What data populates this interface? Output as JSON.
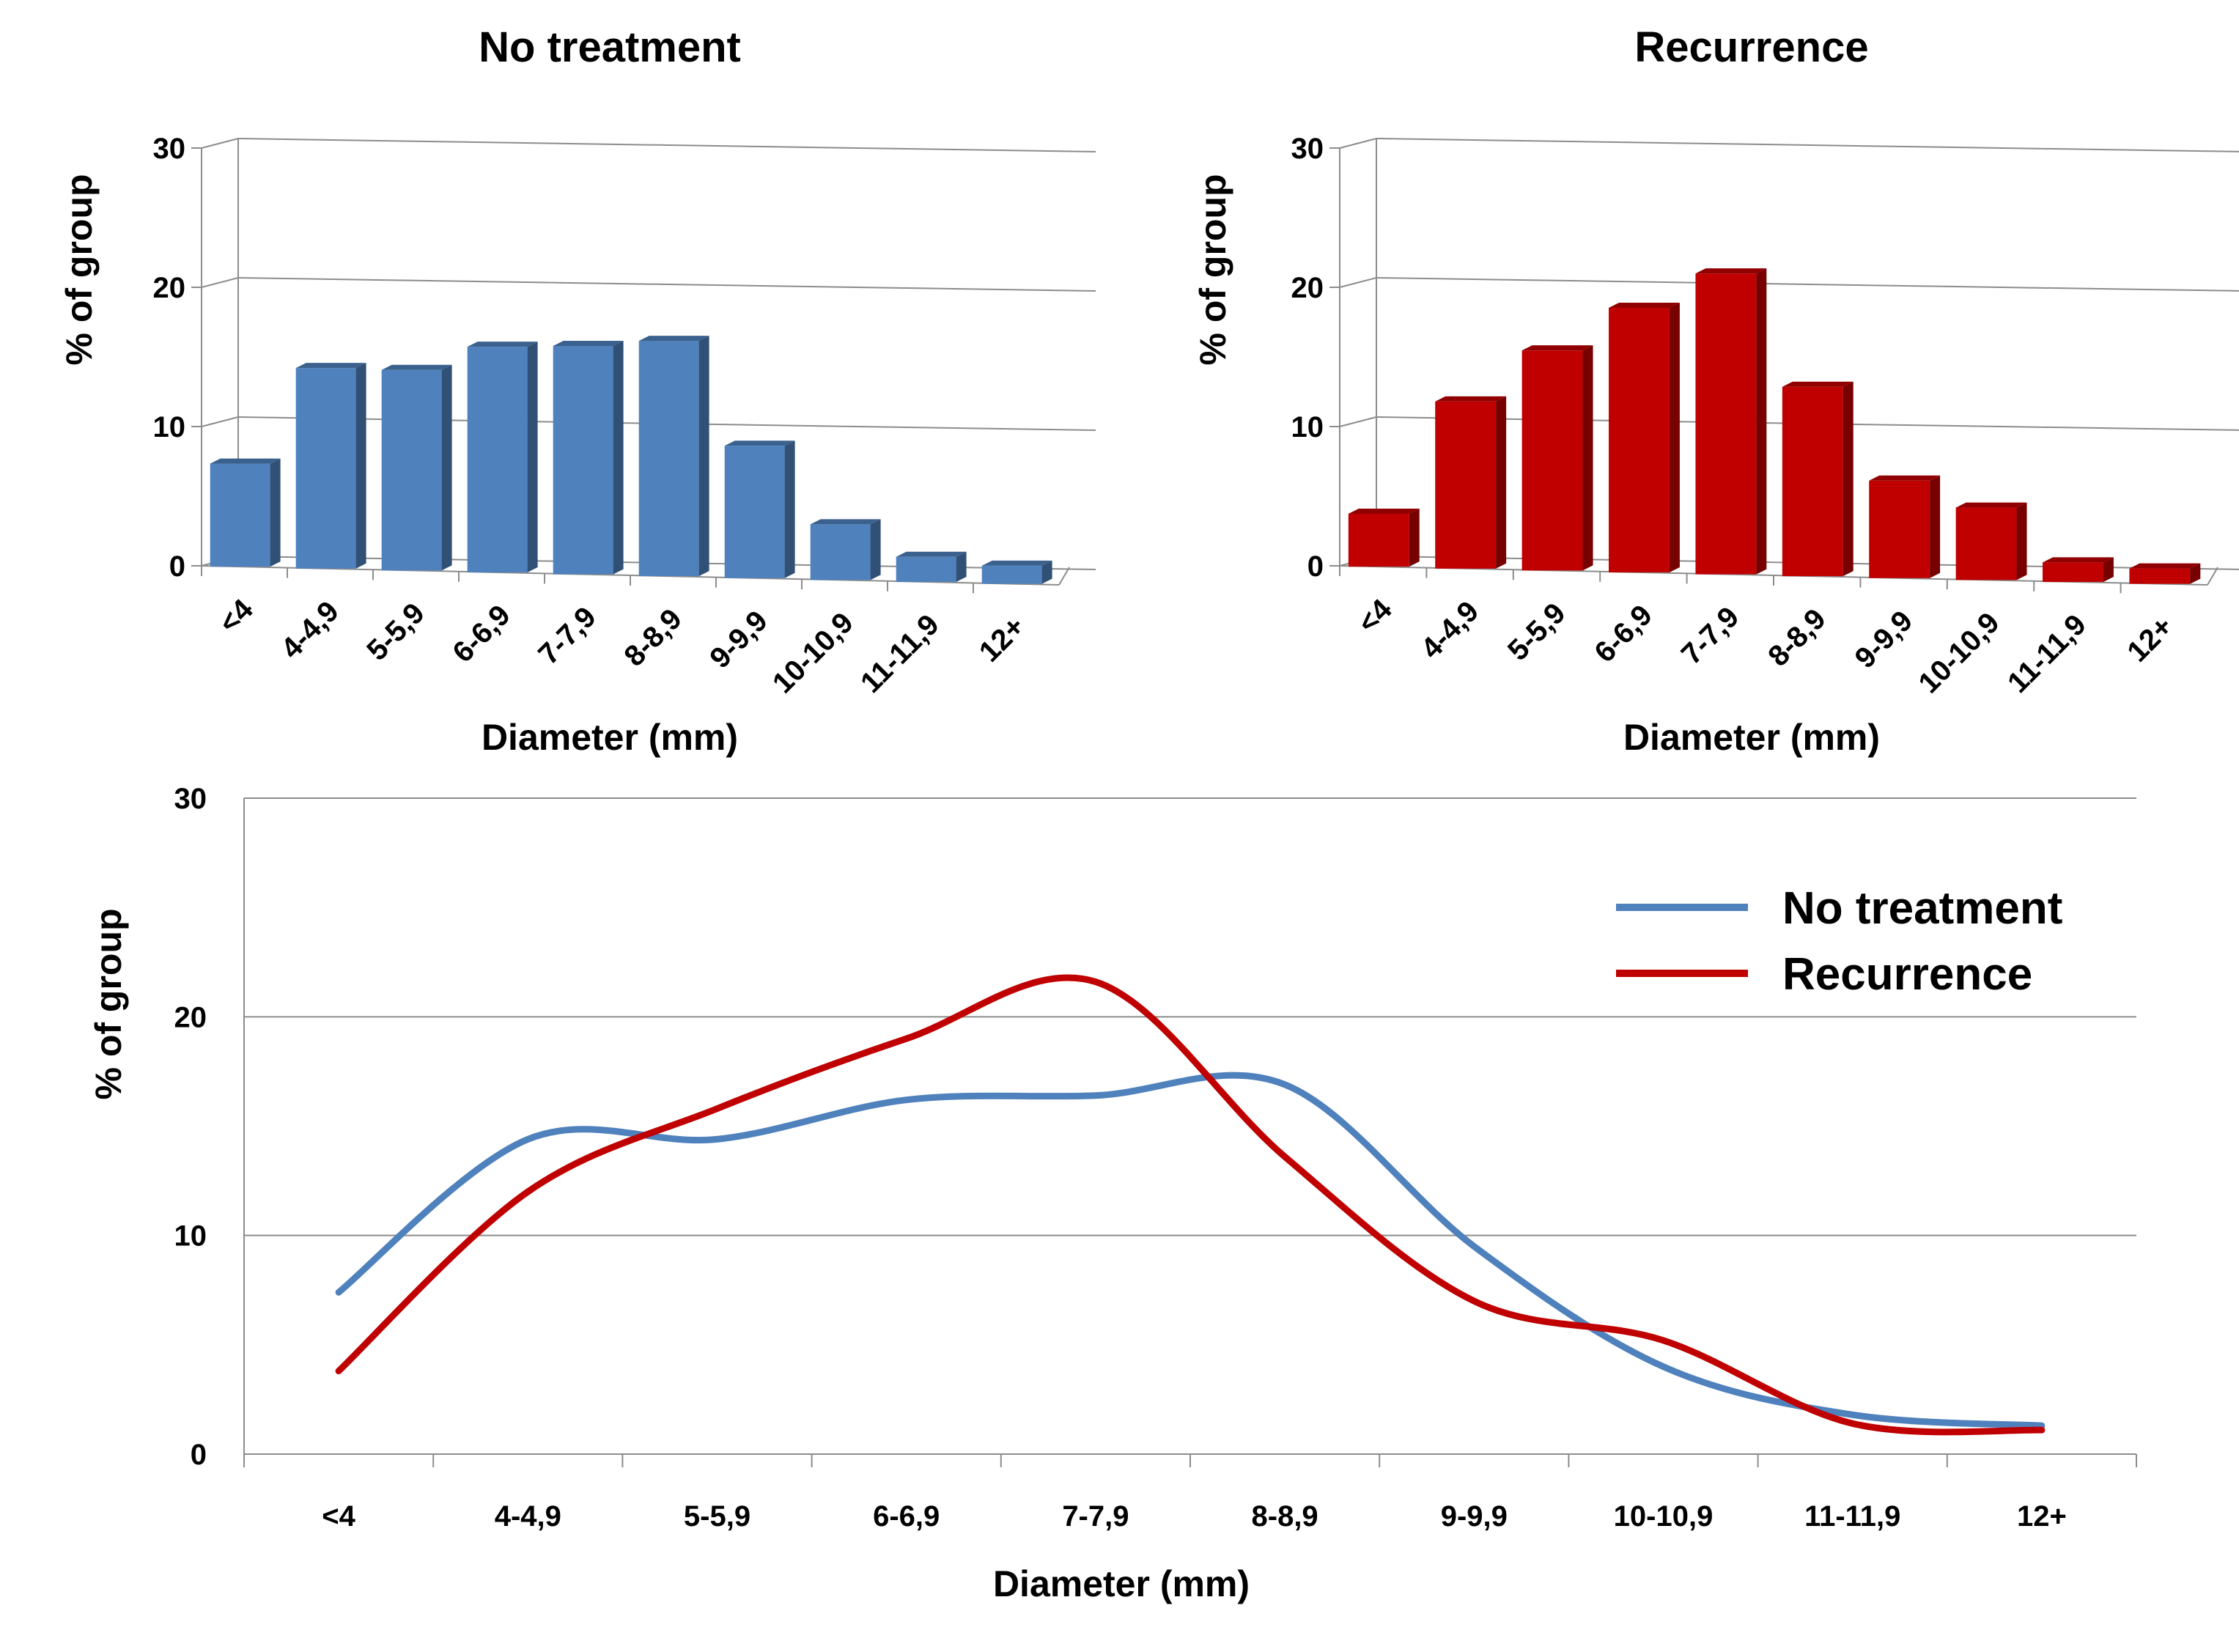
{
  "colors": {
    "no_treatment": "#4F81BD",
    "recurrence": "#C00000"
  },
  "chart_data": [
    {
      "id": "left",
      "type": "bar",
      "title": "No treatment",
      "xlabel": "Diameter (mm)",
      "ylabel": "% of group",
      "ylim": [
        0,
        30
      ],
      "yticks": [
        0,
        10,
        20,
        30
      ],
      "grid": true,
      "categories": [
        "<4",
        "4-4,9",
        "5-5,9",
        "6-6,9",
        "7-7,9",
        "8-8,9",
        "9-9,9",
        "10-10,9",
        "11-11,9",
        "12+"
      ],
      "values": [
        7.4,
        14.4,
        14.4,
        16.2,
        16.4,
        16.9,
        9.5,
        4.0,
        1.8,
        1.3
      ],
      "color": "#4F81BD"
    },
    {
      "id": "right",
      "type": "bar",
      "title": "Recurrence",
      "xlabel": "Diameter (mm)",
      "ylabel": "% of group",
      "ylim": [
        0,
        30
      ],
      "yticks": [
        0,
        10,
        20,
        30
      ],
      "grid": true,
      "categories": [
        "<4",
        "4-4,9",
        "5-5,9",
        "6-6,9",
        "7-7,9",
        "8-8,9",
        "9-9,9",
        "10-10,9",
        "11-11,9",
        "12+"
      ],
      "values": [
        3.8,
        12.0,
        15.8,
        19.0,
        21.6,
        13.6,
        7.0,
        5.2,
        1.4,
        1.1
      ],
      "color": "#C00000"
    },
    {
      "id": "bottom",
      "type": "line",
      "title": "",
      "xlabel": "Diameter (mm)",
      "ylabel": "% of group",
      "ylim": [
        0,
        30
      ],
      "yticks": [
        0,
        10,
        20,
        30
      ],
      "grid": true,
      "legend": "top-right",
      "categories": [
        "<4",
        "4-4,9",
        "5-5,9",
        "6-6,9",
        "7-7,9",
        "8-8,9",
        "9-9,9",
        "10-10,9",
        "11-11,9",
        "12+"
      ],
      "series": [
        {
          "name": "No treatment",
          "color": "#4F81BD",
          "values": [
            7.4,
            14.4,
            14.4,
            16.2,
            16.4,
            16.9,
            9.5,
            4.0,
            1.8,
            1.3
          ]
        },
        {
          "name": "Recurrence",
          "color": "#C00000",
          "values": [
            3.8,
            12.0,
            15.8,
            19.0,
            21.6,
            13.6,
            7.0,
            5.2,
            1.4,
            1.1
          ]
        }
      ]
    }
  ]
}
